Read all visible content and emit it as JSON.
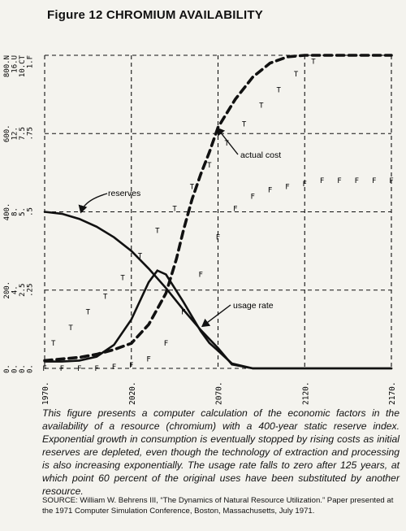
{
  "title": "Figure 12 CHROMIUM AVAILABILITY",
  "chart_data": {
    "type": "line",
    "x_ticks": [
      "1970.",
      "2020.",
      "2070.",
      "2120.",
      "2170."
    ],
    "xlim": [
      1970,
      2170
    ],
    "y_scales": [
      {
        "symbol": "N",
        "ticks": [
          "0.",
          "200.",
          "400.",
          "600.",
          "800.N"
        ]
      },
      {
        "symbol": "U",
        "ticks": [
          "0.",
          "4.",
          "8.",
          "12.",
          "16.U"
        ]
      },
      {
        "symbol": "CT",
        "ticks": [
          "0.",
          "2.5",
          "5.",
          "7.5",
          "10.CT"
        ]
      },
      {
        "symbol": "F",
        "ticks": [
          "0.",
          ".25",
          ".5",
          ".75",
          "1.F"
        ]
      }
    ],
    "annotations": [
      "reserves",
      "actual cost",
      "usage rate"
    ],
    "series": [
      {
        "name": "reserves",
        "marker": "N",
        "scale": "N",
        "x": [
          1970,
          1980,
          1990,
          2000,
          2010,
          2020,
          2030,
          2040,
          2050,
          2060,
          2070,
          2078,
          2090,
          2110,
          2130,
          2150,
          2170
        ],
        "y": [
          400,
          395,
          382,
          362,
          335,
          300,
          255,
          205,
          150,
          98,
          52,
          10,
          0,
          0,
          0,
          0,
          0
        ]
      },
      {
        "name": "usage rate",
        "marker": "U",
        "scale": "U",
        "x": [
          1970,
          1980,
          1990,
          2000,
          2010,
          2020,
          2030,
          2035,
          2040,
          2050,
          2060,
          2065,
          2070,
          2078,
          2090,
          2110,
          2130,
          2150,
          2170
        ],
        "y": [
          0.35,
          0.35,
          0.4,
          0.6,
          1.2,
          2.5,
          4.4,
          5.0,
          4.8,
          3.4,
          1.9,
          1.3,
          0.9,
          0.25,
          0,
          0,
          0,
          0,
          0
        ]
      },
      {
        "name": "actual cost",
        "marker": "C",
        "scale": "CT",
        "x": [
          1970,
          1980,
          1990,
          2000,
          2010,
          2020,
          2030,
          2040,
          2046,
          2050,
          2055,
          2060,
          2065,
          2070,
          2080,
          2090,
          2100,
          2110,
          2120,
          2130,
          2140,
          2150,
          2160,
          2170
        ],
        "y": [
          0.25,
          0.3,
          0.35,
          0.45,
          0.6,
          0.8,
          1.4,
          2.4,
          3.5,
          4.4,
          5.4,
          6.2,
          6.9,
          7.7,
          8.6,
          9.3,
          9.75,
          9.95,
          10,
          10,
          10,
          10,
          10,
          10
        ]
      },
      {
        "name": "T",
        "marker": "T",
        "scale": "CT",
        "x": [
          1975,
          1985,
          1995,
          2005,
          2015,
          2025,
          2035,
          2045,
          2055,
          2065,
          2075,
          2085,
          2095,
          2105,
          2115,
          2125
        ],
        "y": [
          0.8,
          1.3,
          1.8,
          2.3,
          2.9,
          3.6,
          4.4,
          5.1,
          5.8,
          6.5,
          7.2,
          7.8,
          8.4,
          8.9,
          9.4,
          9.8
        ]
      },
      {
        "name": "F",
        "marker": "F",
        "scale": "F",
        "x": [
          1970,
          1980,
          1990,
          2000,
          2010,
          2020,
          2030,
          2040,
          2050,
          2060,
          2070,
          2080,
          2090,
          2100,
          2110,
          2120,
          2130,
          2140,
          2150,
          2160,
          2170
        ],
        "y": [
          0,
          0,
          0,
          0,
          0.005,
          0.01,
          0.03,
          0.08,
          0.18,
          0.3,
          0.42,
          0.51,
          0.55,
          0.57,
          0.58,
          0.59,
          0.6,
          0.6,
          0.6,
          0.6,
          0.6
        ]
      }
    ]
  },
  "caption": "This figure presents a computer calculation of the economic factors in the availability of a resource (chromium) with a 400-year static reserve index. Exponential growth in consumption is eventually stopped by rising costs as initial reserves are depleted, even though the technology of extraction and processing is also increasing exponentially. The usage rate falls to zero after 125 years, at which point 60 percent of the original uses have been substituted by another resource.",
  "source": "SOURCE: William W. Behrens III, “The Dynamics of Natural Resource Utilization.” Paper presented at the 1971 Computer Simulation Conference, Boston, Massachusetts, July 1971."
}
